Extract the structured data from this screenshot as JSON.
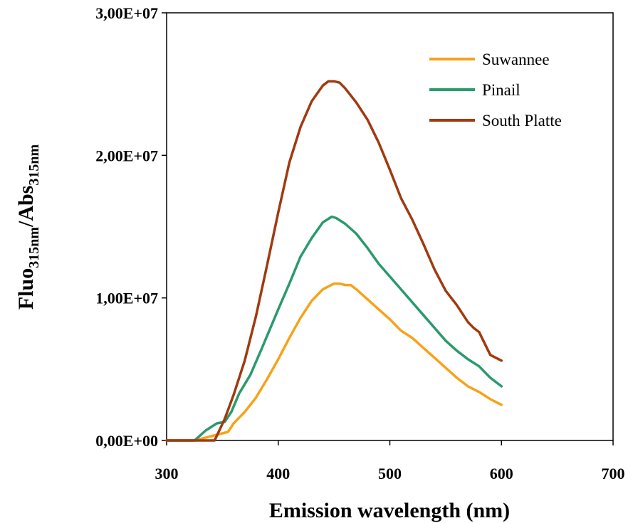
{
  "chart_data": {
    "type": "line",
    "xlabel": "Emission wavelength (nm)",
    "ylabel": {
      "main1": "Fluo",
      "sub1": "315nm",
      "main2": "/Abs",
      "sub2": "315nm"
    },
    "xlim": [
      300,
      700
    ],
    "ylim": [
      0,
      30000000
    ],
    "x_ticks": [
      300,
      400,
      500,
      600,
      700
    ],
    "x_tick_labels": [
      "300",
      "400",
      "500",
      "600",
      "700"
    ],
    "y_ticks": [
      0,
      10000000,
      20000000,
      30000000
    ],
    "y_tick_labels": [
      "0,00E+00",
      "1,00E+07",
      "2,00E+07",
      "3,00E+07"
    ],
    "grid": false,
    "legend_position": "top-right",
    "series": [
      {
        "name": "Suwannee",
        "color": "#F7A21B",
        "x": [
          300,
          325,
          340,
          350,
          355,
          360,
          370,
          380,
          390,
          400,
          410,
          420,
          430,
          440,
          450,
          455,
          460,
          465,
          470,
          480,
          490,
          500,
          510,
          520,
          530,
          540,
          550,
          560,
          570,
          580,
          590,
          600
        ],
        "y": [
          0,
          0,
          300000,
          500000,
          600000,
          1200000,
          2000000,
          3000000,
          4300000,
          5700000,
          7200000,
          8600000,
          9800000,
          10600000,
          11000000,
          11000000,
          10900000,
          10900000,
          10600000,
          9900000,
          9200000,
          8500000,
          7700000,
          7200000,
          6500000,
          5800000,
          5100000,
          4400000,
          3800000,
          3400000,
          2900000,
          2500000
        ]
      },
      {
        "name": "Pinail",
        "color": "#2A9A6C",
        "x": [
          300,
          325,
          335,
          345,
          352,
          358,
          365,
          375,
          385,
          400,
          410,
          420,
          430,
          440,
          448,
          452,
          460,
          470,
          480,
          490,
          500,
          510,
          520,
          530,
          540,
          550,
          560,
          570,
          580,
          590,
          600
        ],
        "y": [
          0,
          0,
          700000,
          1200000,
          1300000,
          2000000,
          3300000,
          4600000,
          6400000,
          9200000,
          11000000,
          12900000,
          14200000,
          15300000,
          15700000,
          15600000,
          15200000,
          14500000,
          13500000,
          12400000,
          11500000,
          10600000,
          9700000,
          8800000,
          7900000,
          7000000,
          6300000,
          5700000,
          5200000,
          4400000,
          3800000
        ]
      },
      {
        "name": "South Platte",
        "color": "#A03A10",
        "x": [
          300,
          343,
          346,
          352,
          360,
          370,
          380,
          390,
          400,
          410,
          420,
          430,
          440,
          445,
          450,
          455,
          460,
          470,
          480,
          490,
          500,
          510,
          520,
          530,
          540,
          550,
          560,
          570,
          575,
          580,
          590,
          600
        ],
        "y": [
          0,
          0,
          500000,
          1500000,
          3200000,
          5600000,
          8700000,
          12300000,
          16000000,
          19500000,
          22000000,
          23800000,
          24900000,
          25200000,
          25200000,
          25100000,
          24700000,
          23700000,
          22500000,
          20900000,
          19000000,
          17000000,
          15500000,
          13800000,
          12000000,
          10500000,
          9500000,
          8300000,
          7900000,
          7600000,
          6000000,
          5600000
        ]
      }
    ]
  }
}
